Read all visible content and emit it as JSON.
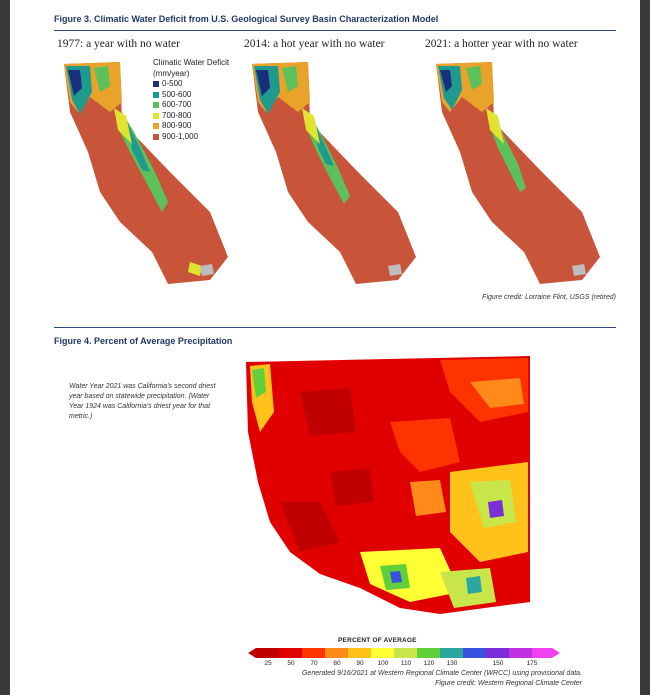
{
  "figure3": {
    "title": "Figure 3.  Climatic Water Deficit from U.S. Geological Survey Basin Characterization Model",
    "maps": [
      {
        "label": "1977: a year with no water"
      },
      {
        "label": "2014: a hot year with no water"
      },
      {
        "label": "2021: a hotter year with no water"
      }
    ],
    "legend": {
      "title_line1": "Climatic Water Deficit",
      "title_line2": "(mm/year)",
      "items": [
        {
          "label": "0-500",
          "color": "#1a2f7a"
        },
        {
          "label": "500-600",
          "color": "#1e9a8e"
        },
        {
          "label": "600-700",
          "color": "#5cc15a"
        },
        {
          "label": "700-800",
          "color": "#e2e330"
        },
        {
          "label": "800-900",
          "color": "#e9a32a"
        },
        {
          "label": "900-1,000",
          "color": "#c8553a"
        }
      ]
    },
    "credit": "Figure credit: Lorraine Flint, USGS (retired)"
  },
  "figure4": {
    "title": "Figure 4.  Percent of Average Precipitation",
    "note": "Water Year 2021 was California's second driest year based on statewide precipitation. (Water Year 1924 was California's driest year for that metric.)",
    "scale_title": "PERCENT OF AVERAGE",
    "scale_ticks": [
      "25",
      "50",
      "70",
      "80",
      "90",
      "100",
      "110",
      "120",
      "130",
      "150",
      "175"
    ],
    "scale_colors": [
      "#c00000",
      "#e00000",
      "#ff3300",
      "#ff8a1a",
      "#ffc21a",
      "#ffff33",
      "#c8e64a",
      "#5fcf3a",
      "#2aa8a0",
      "#3a52e0",
      "#7a2ed8",
      "#c030e0",
      "#f040f0"
    ],
    "generated": "Generated 9/16/2021 at Western Regional Climate Center (WRCC) using provisional data.",
    "credit": "Figure credit: Western Regional Climate Center"
  }
}
